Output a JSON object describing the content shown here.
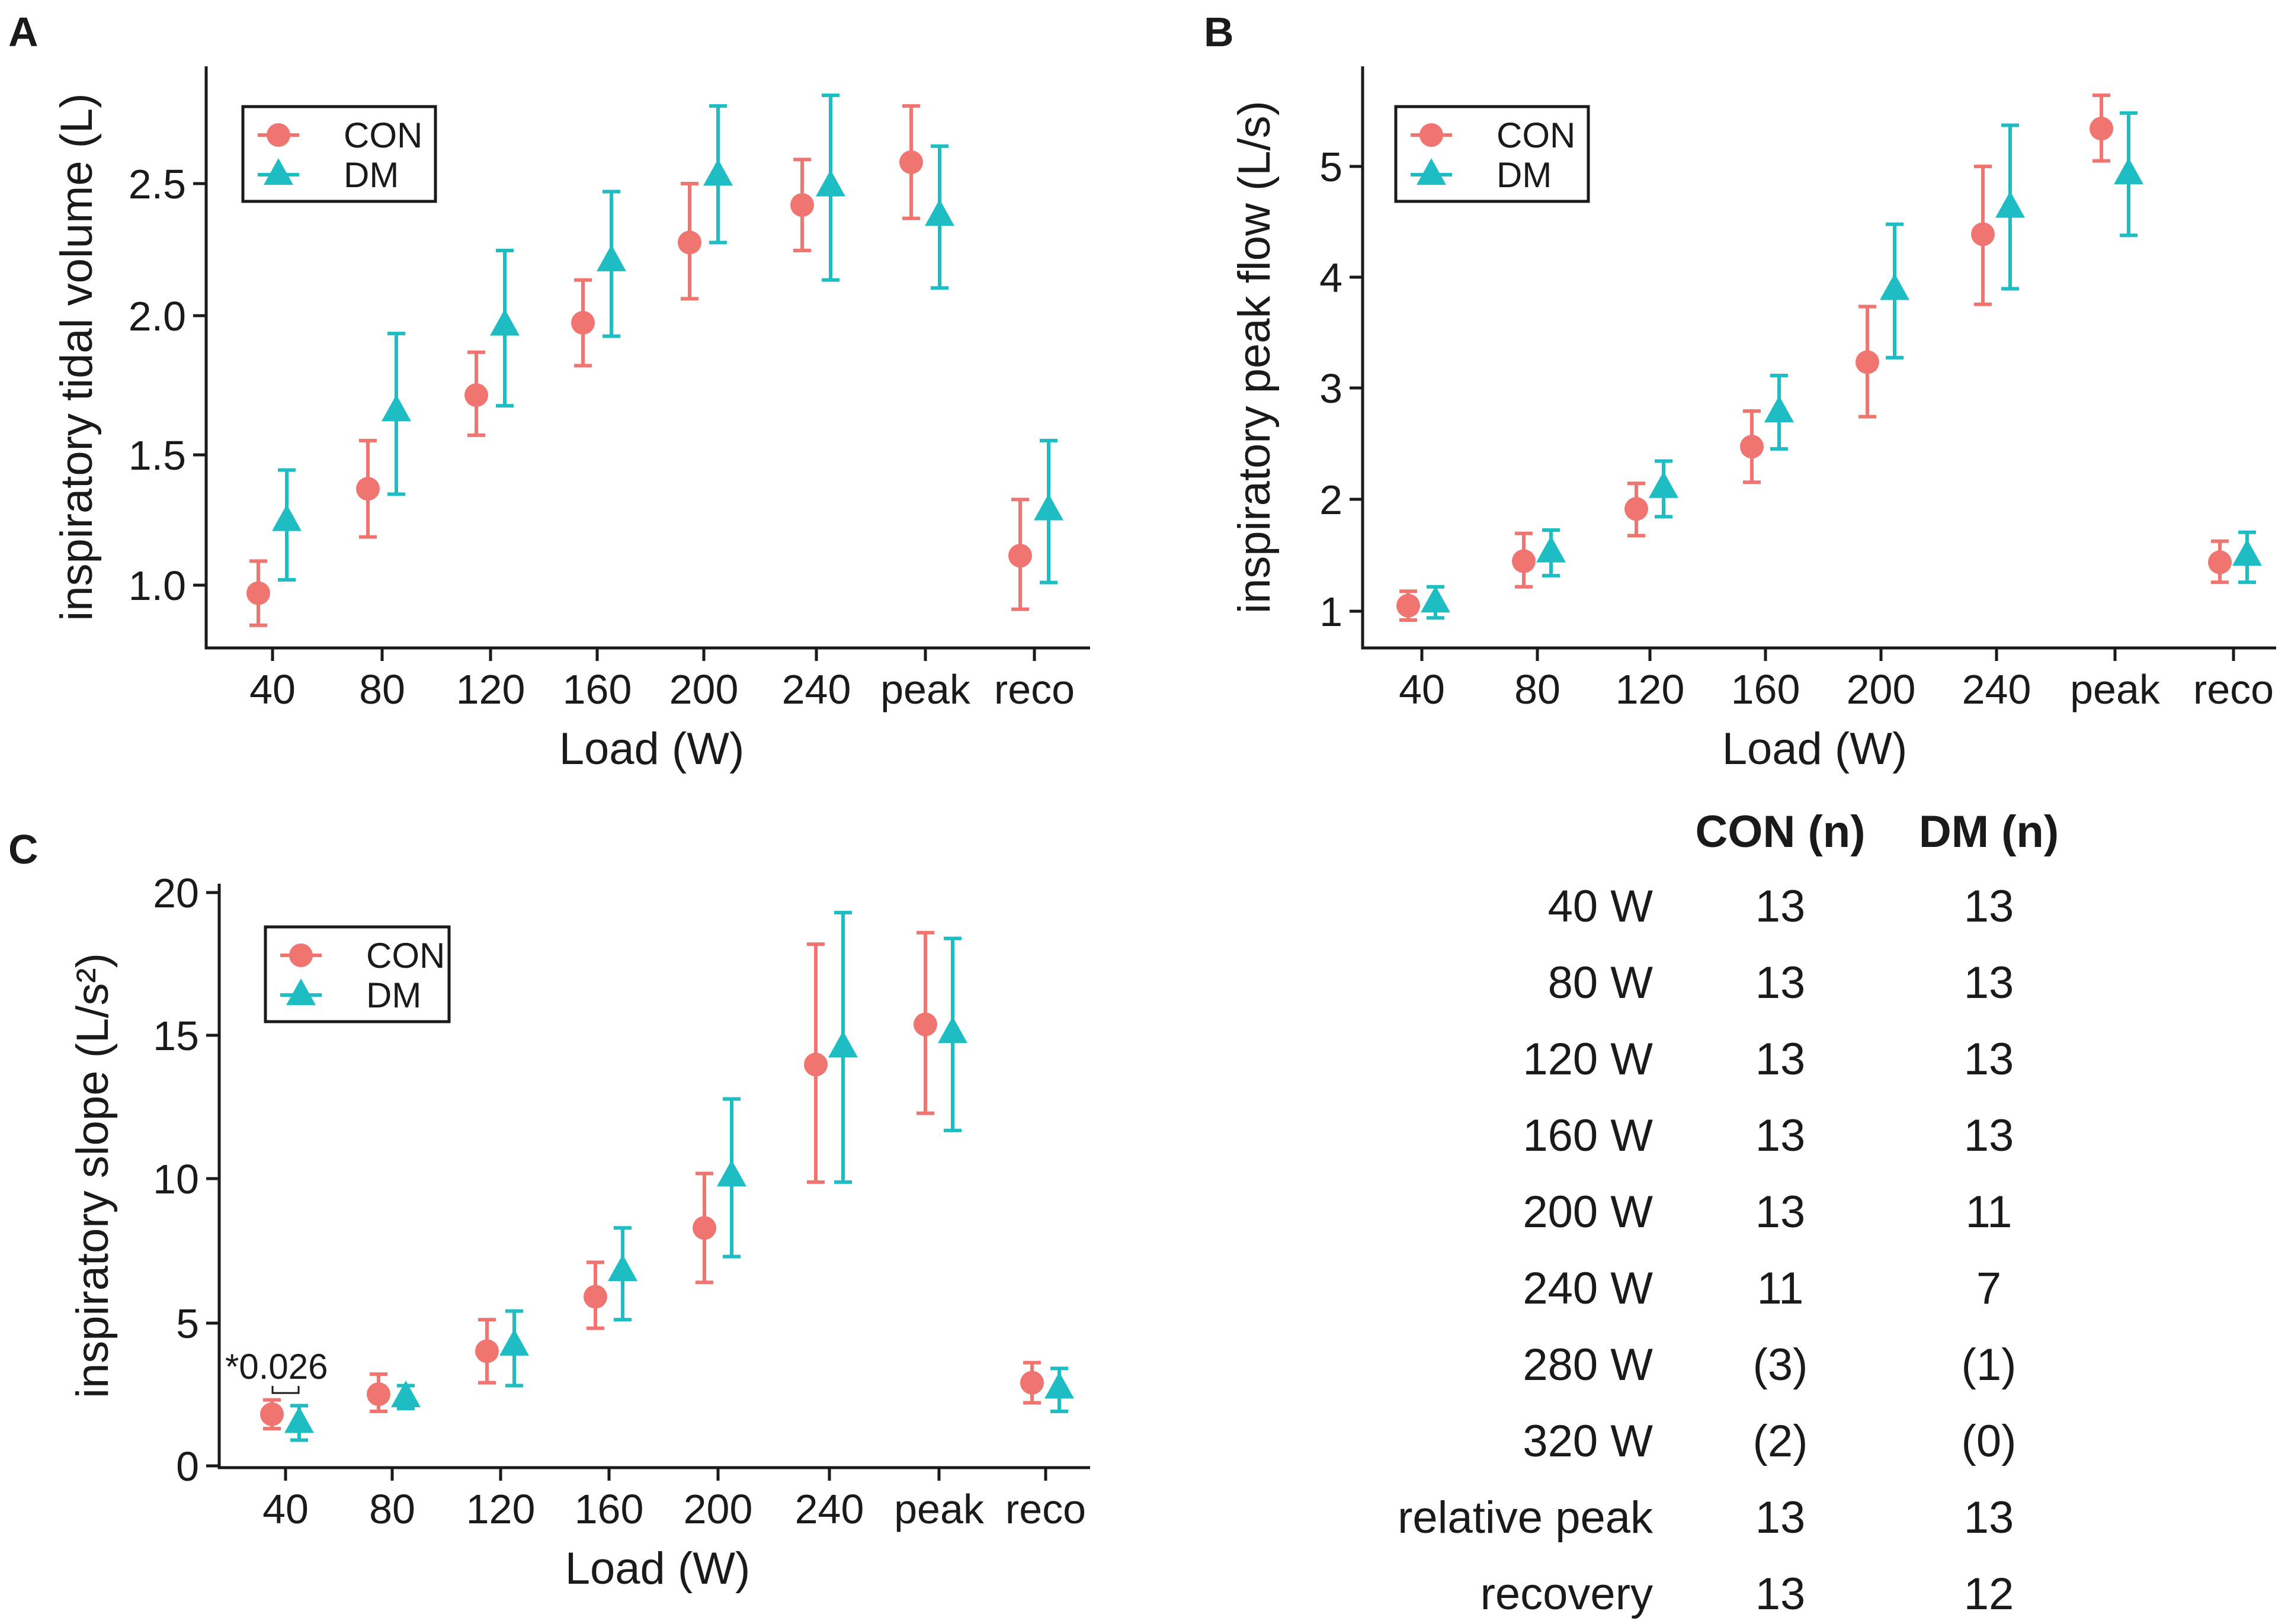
{
  "colors": {
    "con": "#F07470",
    "dm": "#1EBDC4",
    "axis": "#1a1a1a"
  },
  "chart_data": [
    {
      "panel": "A",
      "type": "scatter",
      "categories": [
        "40",
        "80",
        "120",
        "160",
        "200",
        "240",
        "peak",
        "reco"
      ],
      "xlabel": "Load (W)",
      "ylabel": "inspiratory tidal volume (L)",
      "ylim": [
        0.78,
        2.86
      ],
      "yticks": [
        "1.0",
        "1.5",
        "2.0",
        "2.5"
      ],
      "legend": [
        "CON",
        "DM"
      ],
      "legend_position": "top-left",
      "series": [
        {
          "name": "CON",
          "marker": "circle",
          "values": [
            0.97,
            1.36,
            1.71,
            1.98,
            2.28,
            2.42,
            2.58,
            1.11
          ],
          "err_low": [
            0.85,
            1.18,
            1.56,
            1.82,
            2.07,
            2.25,
            2.37,
            0.91
          ],
          "err_high": [
            1.09,
            1.54,
            1.87,
            2.14,
            2.5,
            2.59,
            2.79,
            1.32
          ]
        },
        {
          "name": "DM",
          "marker": "triangle",
          "values": [
            1.24,
            1.65,
            1.97,
            2.21,
            2.53,
            2.49,
            2.38,
            1.28
          ],
          "err_low": [
            1.02,
            1.34,
            1.67,
            1.93,
            2.28,
            2.14,
            2.11,
            1.01
          ],
          "err_high": [
            1.43,
            1.94,
            2.25,
            2.47,
            2.79,
            2.83,
            2.64,
            1.54
          ]
        }
      ]
    },
    {
      "panel": "B",
      "type": "scatter",
      "categories": [
        "40",
        "80",
        "120",
        "160",
        "200",
        "240",
        "peak",
        "reco"
      ],
      "xlabel": "Load (W)",
      "ylabel": "inspiratory peak flow (L/s)",
      "ylim": [
        0.7,
        5.85
      ],
      "yticks": [
        "1",
        "2",
        "3",
        "4",
        "5"
      ],
      "legend": [
        "CON",
        "DM"
      ],
      "legend_position": "top-left",
      "series": [
        {
          "name": "CON",
          "marker": "circle",
          "values": [
            1.05,
            1.45,
            1.92,
            2.48,
            3.24,
            4.39,
            5.34,
            1.44
          ],
          "err_low": [
            0.92,
            1.22,
            1.68,
            2.16,
            2.75,
            3.76,
            5.05,
            1.26
          ],
          "err_high": [
            1.18,
            1.7,
            2.15,
            2.8,
            3.74,
            5.0,
            5.64,
            1.63
          ]
        },
        {
          "name": "DM",
          "marker": "triangle",
          "values": [
            1.08,
            1.53,
            2.11,
            2.79,
            3.89,
            4.63,
            4.93,
            1.5
          ],
          "err_low": [
            0.94,
            1.32,
            1.85,
            2.46,
            3.28,
            3.9,
            4.38,
            1.26
          ],
          "err_high": [
            1.22,
            1.73,
            2.35,
            3.12,
            4.48,
            5.37,
            5.48,
            1.71
          ]
        }
      ]
    },
    {
      "panel": "C",
      "type": "scatter",
      "categories": [
        "40",
        "80",
        "120",
        "160",
        "200",
        "240",
        "peak",
        "reco"
      ],
      "xlabel": "Load (W)",
      "ylabel": "inspiratory slope (L/s²)",
      "ylim": [
        0,
        20
      ],
      "yticks": [
        "0",
        "5",
        "10",
        "15",
        "20"
      ],
      "legend": [
        "CON",
        "DM"
      ],
      "legend_position": "top-left",
      "annotation": "*0.026",
      "series": [
        {
          "name": "CON",
          "marker": "circle",
          "values": [
            1.8,
            2.5,
            4.0,
            5.9,
            8.3,
            14.0,
            15.4,
            2.9
          ],
          "err_low": [
            1.3,
            1.9,
            2.9,
            4.8,
            6.4,
            9.9,
            12.3,
            2.2
          ],
          "err_high": [
            2.3,
            3.2,
            5.1,
            7.1,
            10.2,
            18.2,
            18.6,
            3.6
          ]
        },
        {
          "name": "DM",
          "marker": "triangle",
          "values": [
            1.5,
            2.4,
            4.2,
            6.8,
            10.1,
            14.6,
            15.1,
            2.7
          ],
          "err_low": [
            0.9,
            2.0,
            2.8,
            5.1,
            7.3,
            9.9,
            11.7,
            1.9
          ],
          "err_high": [
            2.1,
            2.8,
            5.4,
            8.3,
            12.8,
            19.3,
            18.4,
            3.4
          ]
        }
      ]
    }
  ],
  "table": {
    "headers": [
      "CON (n)",
      "DM (n)"
    ],
    "rows": [
      {
        "label": "40 W",
        "con": "13",
        "dm": "13"
      },
      {
        "label": "80 W",
        "con": "13",
        "dm": "13"
      },
      {
        "label": "120 W",
        "con": "13",
        "dm": "13"
      },
      {
        "label": "160 W",
        "con": "13",
        "dm": "13"
      },
      {
        "label": "200 W",
        "con": "13",
        "dm": "11"
      },
      {
        "label": "240 W",
        "con": "11",
        "dm": "7"
      },
      {
        "label": "280 W",
        "con": "(3)",
        "dm": "(1)"
      },
      {
        "label": "320 W",
        "con": "(2)",
        "dm": "(0)"
      },
      {
        "label": "relative peak",
        "con": "13",
        "dm": "13"
      },
      {
        "label": "recovery",
        "con": "13",
        "dm": "12"
      }
    ]
  }
}
